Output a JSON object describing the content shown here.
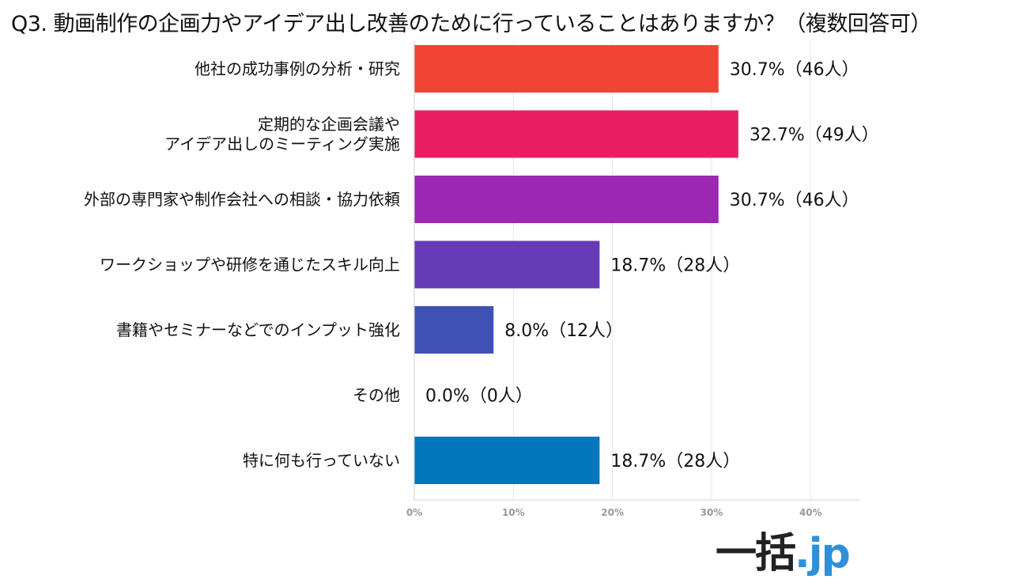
{
  "title": "Q3. 動画制作の企画力やアイデア出し改善のために行っていることはありますか？（複数回答可）",
  "logo": {
    "text": "一括",
    "suffix": ".jp"
  },
  "chart_data": {
    "type": "bar",
    "orientation": "horizontal",
    "categories": [
      [
        "他社の成功事例の分析・研究"
      ],
      [
        "定期的な企画会議や",
        "アイデア出しのミーティング実施"
      ],
      [
        "外部の専門家や制作会社への相談・協力依頼"
      ],
      [
        "ワークショップや研修を通じたスキル向上"
      ],
      [
        "書籍やセミナーなどでのインプット強化"
      ],
      [
        "その他"
      ],
      [
        "特に何も行っていない"
      ]
    ],
    "values": [
      30.7,
      32.7,
      30.7,
      18.7,
      8.0,
      0.0,
      18.7
    ],
    "value_labels": [
      "30.7%（46人）",
      "32.7%（49人）",
      "30.7%（46人）",
      "18.7%（28人）",
      "8.0%（12人）",
      "0.0%（0人）",
      "18.7%（28人）"
    ],
    "colors": [
      "#f24434",
      "#e91e63",
      "#9c27b0",
      "#673ab7",
      "#3f51b5",
      "#2196f3",
      "#0277bd"
    ],
    "xlim": [
      0,
      45
    ],
    "xticks": [
      0,
      10,
      20,
      30,
      40
    ],
    "xtick_labels": [
      "0%",
      "10%",
      "20%",
      "30%",
      "40%"
    ],
    "grid": true
  }
}
